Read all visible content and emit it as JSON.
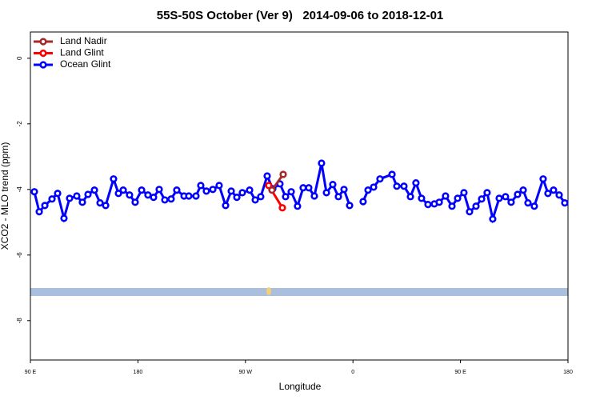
{
  "chart_data": {
    "type": "line",
    "title": "55S-50S October (Ver 9)   2014-09-06 to 2018-12-01",
    "x_label": "Longitude",
    "y_label": "XCO2 - MLO trend (ppm)",
    "xlim": [
      90,
      540
    ],
    "xticks": [
      {
        "value": 90,
        "label": "90 E"
      },
      180,
      {
        "value": 270,
        "label": "90 W"
      },
      {
        "value": 360,
        "label": "0"
      },
      {
        "value": 450,
        "label": "90 E"
      },
      {
        "value": 540,
        "label": "180"
      }
    ],
    "ylim": [
      -9.2,
      0.8
    ],
    "yticks": [
      0,
      -2,
      -4,
      -6,
      -8
    ],
    "legend": "top-left",
    "series": [
      {
        "name": "Land Nadir",
        "color": "#a52a2a",
        "x": [
          292.2,
          301.6
        ],
        "values": [
          -4.02,
          -3.54
        ]
      },
      {
        "name": "Land Glint",
        "color": "#ff0000",
        "x": [
          289.5,
          300.9
        ],
        "values": [
          -3.88,
          -4.56
        ]
      },
      {
        "name": "Ocean Glint",
        "color": "#0000ff",
        "x": [
          93.3,
          97.4,
          102.1,
          108.1,
          112.8,
          118.1,
          122.8,
          128.8,
          133.5,
          138.2,
          143.6,
          148.3,
          153.0,
          159.6,
          163.7,
          167.7,
          173.0,
          177.7,
          183.1,
          188.4,
          193.1,
          197.8,
          202.5,
          207.8,
          212.5,
          218.6,
          222.6,
          228.6,
          232.6,
          237.3,
          242.7,
          248.0,
          253.4,
          258.1,
          262.8,
          267.4,
          273.5,
          278.2,
          282.8,
          288.2,
          292.9,
          298.9,
          303.6,
          308.3,
          313.6,
          318.3,
          323.0,
          327.7,
          333.7,
          337.8,
          343.1,
          347.8,
          352.5,
          357.2,
          360,
          368.5,
          372.6,
          377.3,
          382.6,
          392.7,
          396.7,
          402.7,
          408.1,
          412.7,
          417.4,
          422.8,
          428.1,
          432.2,
          437.5,
          442.9,
          447.6,
          452.9,
          457.6,
          463.0,
          467.7,
          472.3,
          477.0,
          482.4,
          487.7,
          492.4,
          497.8,
          502.5,
          506.5,
          511.8,
          519.2,
          523.2,
          527.9,
          532.6,
          537.3
        ],
        "values": [
          -4.07,
          -4.68,
          -4.49,
          -4.29,
          -4.12,
          -4.88,
          -4.27,
          -4.2,
          -4.39,
          -4.15,
          -4.02,
          -4.41,
          -4.49,
          -3.68,
          -4.12,
          -4.02,
          -4.17,
          -4.39,
          -4.02,
          -4.17,
          -4.24,
          -4.0,
          -4.32,
          -4.29,
          -4.02,
          -4.2,
          -4.2,
          -4.2,
          -3.88,
          -4.05,
          -4.0,
          -3.88,
          -4.49,
          -4.05,
          -4.24,
          -4.1,
          -4.02,
          -4.32,
          -4.22,
          -3.59,
          -3.98,
          -3.83,
          -4.22,
          -4.07,
          -4.51,
          -3.95,
          -3.95,
          -4.2,
          -3.2,
          -4.1,
          -3.85,
          -4.22,
          -4.0,
          -4.49,
          null,
          -4.37,
          -4.02,
          -3.93,
          -3.68,
          -3.54,
          -3.9,
          -3.9,
          -4.22,
          -3.8,
          -4.27,
          -4.46,
          -4.44,
          -4.39,
          -4.2,
          -4.51,
          -4.27,
          -4.1,
          -4.68,
          -4.51,
          -4.29,
          -4.1,
          -4.9,
          -4.27,
          -4.22,
          -4.39,
          -4.15,
          -4.02,
          -4.41,
          -4.51,
          -3.68,
          -4.12,
          -4.02,
          -4.17,
          -4.41
        ]
      }
    ]
  }
}
